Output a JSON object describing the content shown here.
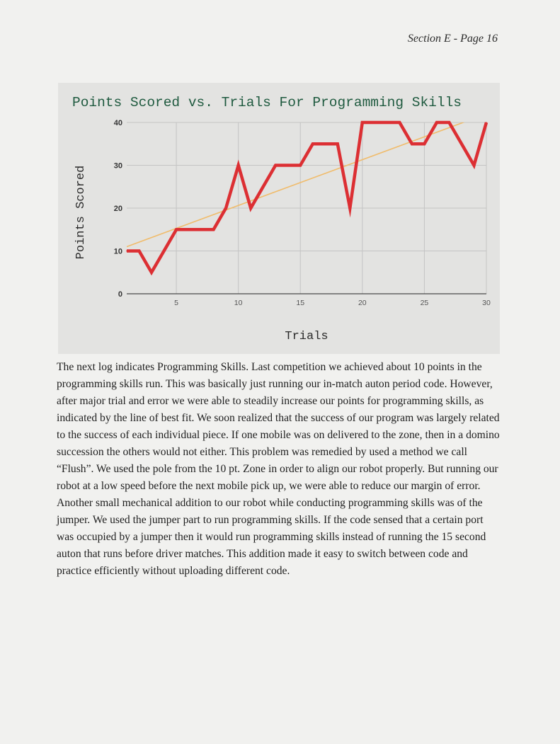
{
  "header": {
    "page_label": "Section E - Page 16"
  },
  "chart_data": {
    "type": "line",
    "title": "Points Scored vs. Trials For Programming Skills",
    "xlabel": "Trials",
    "ylabel": "Points Scored",
    "xlim": [
      1,
      30
    ],
    "ylim": [
      0,
      40
    ],
    "xticks": [
      5,
      10,
      15,
      20,
      25,
      30
    ],
    "yticks": [
      0,
      10,
      20,
      30,
      40
    ],
    "grid": true,
    "legend": "none",
    "series": [
      {
        "x": [
          1,
          2,
          3,
          4,
          5,
          6,
          7,
          8,
          9,
          10,
          11,
          12,
          13,
          14,
          15,
          16,
          17,
          18,
          19,
          20,
          21,
          22,
          23,
          24,
          25,
          26,
          27,
          28,
          29,
          30
        ],
        "values": [
          10,
          10,
          5,
          10,
          15,
          15,
          15,
          15,
          20,
          30,
          20,
          25,
          30,
          30,
          30,
          35,
          35,
          35,
          20,
          40,
          40,
          40,
          40,
          35,
          35,
          40,
          40,
          35,
          30,
          40
        ],
        "color": "#dc2f33"
      }
    ],
    "trendline": {
      "x": [
        1,
        30
      ],
      "y": [
        11,
        42
      ],
      "color": "#f0bc6c",
      "label": "line of best fit"
    }
  },
  "paragraph": "The next log indicates Programming Skills. Last competition we achieved about 10 points in the programming skills run. This was basically just running our in-match auton period code. However, after major trial and error we were able to steadily increase our points for programming skills, as indicated by the line of best fit. We soon realized that the success of our program was largely related to the success of each individual piece. If one mobile was on delivered to the zone, then in a domino succession the others would not either. This problem was remedied by used a method we call “Flush”. We used the pole from the 10 pt. Zone in order to align our robot properly. But running our robot at a low speed before the next mobile pick up, we were able to reduce our margin of error. Another small mechanical addition to our robot while conducting programming skills was of the jumper. We used the jumper part to run programming skills. If the code sensed that a certain port was occupied by a jumper then it would run programming skills instead of running the 15 second auton that runs before driver matches. This addition made it easy to switch between code and practice efficiently without uploading different code."
}
